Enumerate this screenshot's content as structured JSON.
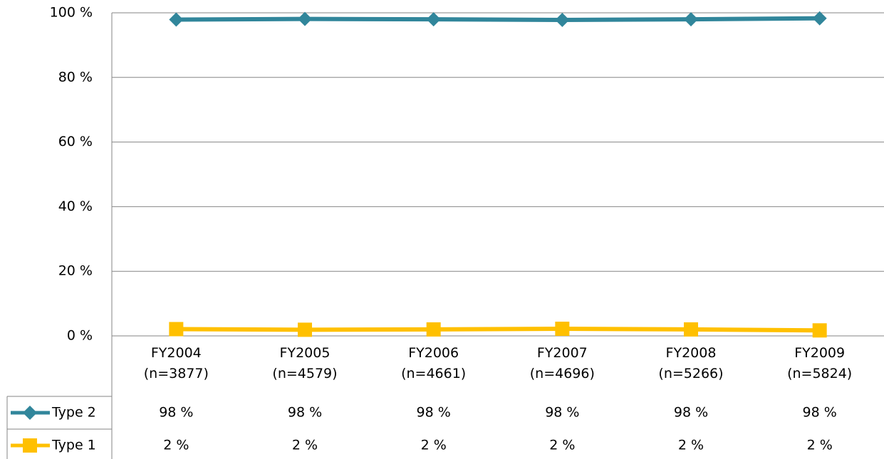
{
  "chart_data": {
    "type": "line",
    "categories": [
      "FY2004\n(n=3877)",
      "FY2005\n(n=4579)",
      "FY2006\n(n=4661)",
      "FY2007\n(n=4696)",
      "FY2008\n(n=5266)",
      "FY2009\n(n=5824)"
    ],
    "series": [
      {
        "name": "Type 2",
        "color": "#31869b",
        "marker": "diamond",
        "values": [
          97.9,
          98.1,
          98.0,
          97.8,
          98.0,
          98.3
        ],
        "value_labels": [
          "98 %",
          "98 %",
          "98 %",
          "98 %",
          "98 %",
          "98 %"
        ]
      },
      {
        "name": "Type 1",
        "color": "#ffc000",
        "marker": "square",
        "values": [
          2.1,
          1.9,
          2.0,
          2.2,
          2.0,
          1.7
        ],
        "value_labels": [
          "2 %",
          "2 %",
          "2 %",
          "2 %",
          "2 %",
          "2 %"
        ]
      }
    ],
    "ylim": [
      0,
      100
    ],
    "yticks": [
      {
        "value": 0,
        "label": "0 %"
      },
      {
        "value": 20,
        "label": "20 %"
      },
      {
        "value": 40,
        "label": "40 %"
      },
      {
        "value": 60,
        "label": "60 %"
      },
      {
        "value": 80,
        "label": "80 %"
      },
      {
        "value": 100,
        "label": "100 %"
      }
    ],
    "grid": true
  }
}
